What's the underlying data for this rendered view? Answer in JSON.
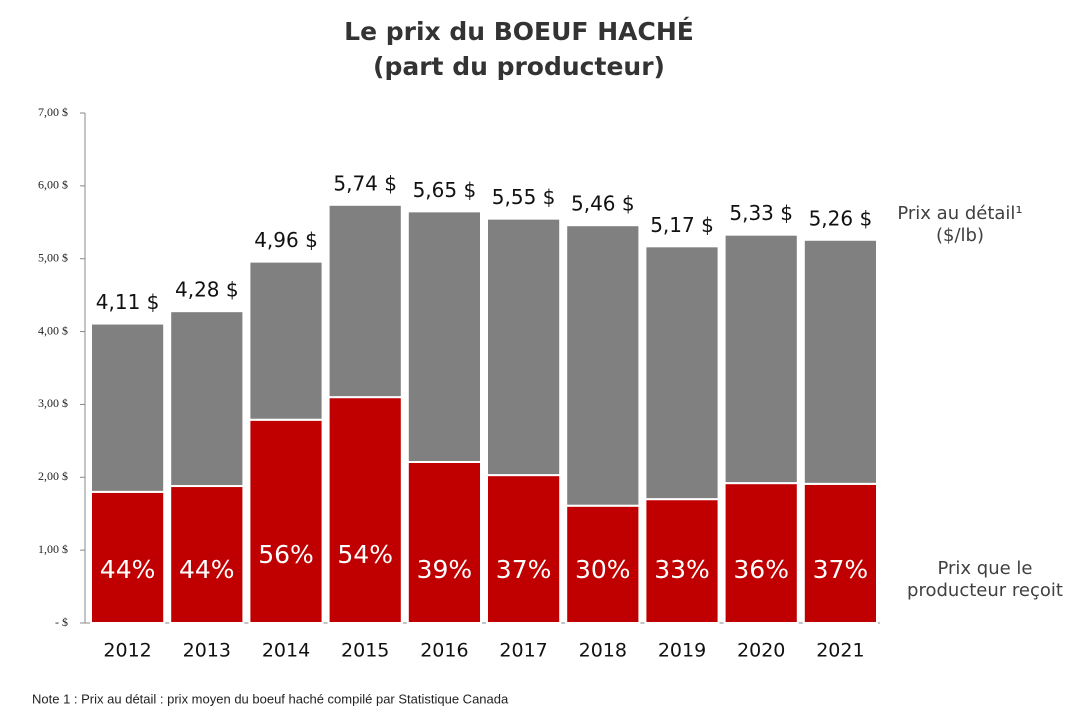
{
  "chart_data": {
    "type": "stacked_bar",
    "title": "Le prix du BOEUF HACHÉ",
    "subtitle": "(part du producteur)",
    "categories": [
      "2012",
      "2013",
      "2014",
      "2015",
      "2016",
      "2017",
      "2018",
      "2019",
      "2020",
      "2021"
    ],
    "series": [
      {
        "name": "Prix que le producteur reçoit",
        "color": "#c00000",
        "values": [
          1.8,
          1.88,
          2.79,
          3.1,
          2.21,
          2.03,
          1.61,
          1.7,
          1.92,
          1.91
        ]
      },
      {
        "name": "Prix au détail¹ ($/lb)",
        "color": "#808080",
        "values": [
          2.31,
          2.4,
          2.17,
          2.64,
          3.44,
          3.52,
          3.85,
          3.47,
          3.41,
          3.35
        ]
      }
    ],
    "shares": [
      44,
      44,
      56,
      54,
      39,
      37,
      30,
      33,
      36,
      37
    ],
    "share_labels": [
      "44%",
      "44%",
      "56%",
      "54%",
      "39%",
      "37%",
      "30%",
      "33%",
      "36%",
      "37%"
    ],
    "totals": [
      4.11,
      4.28,
      4.96,
      5.74,
      5.65,
      5.55,
      5.46,
      5.17,
      5.33,
      5.26
    ],
    "total_labels": [
      "4,11 $",
      "4,28 $",
      "4,96 $",
      "5,74 $",
      "5,65 $",
      "5,55 $",
      "5,46 $",
      "5,17 $",
      "5,33 $",
      "5,26 $"
    ],
    "ylim": [
      0,
      7
    ],
    "yticks": [
      {
        "value": 0,
        "label": "-   $"
      },
      {
        "value": 1,
        "label": "1,00 $"
      },
      {
        "value": 2,
        "label": "2,00 $"
      },
      {
        "value": 3,
        "label": "3,00 $"
      },
      {
        "value": 4,
        "label": "4,00 $"
      },
      {
        "value": 5,
        "label": "5,00 $"
      },
      {
        "value": 6,
        "label": "6,00 $"
      },
      {
        "value": 7,
        "label": "7,00 $"
      }
    ],
    "note": "Note 1 : Prix au détail : prix moyen du boeuf haché compilé par Statistique Canada"
  }
}
